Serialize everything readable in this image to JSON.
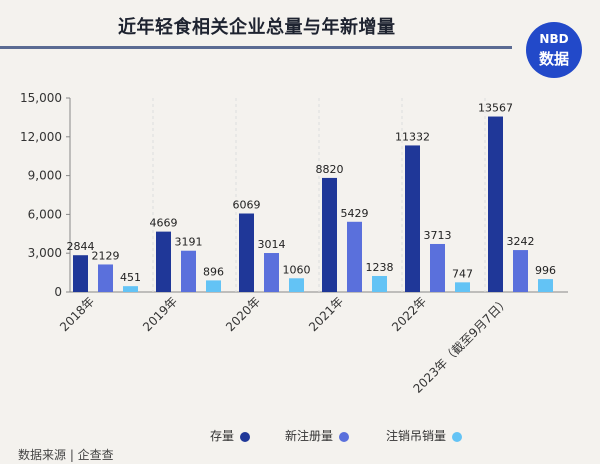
{
  "title": "近年轻食相关企业总量与年新增量",
  "logo": {
    "top": "NBD",
    "bottom": "数据"
  },
  "source": "数据来源 | 企查查",
  "colors": {
    "存量": "#1f3798",
    "新注册量": "#5a70dc",
    "注销吊销量": "#63c3f5"
  },
  "chart_data": {
    "type": "bar",
    "categories": [
      "2018年",
      "2019年",
      "2020年",
      "2021年",
      "2022年",
      "2023年（截至9月7日）"
    ],
    "series": [
      {
        "name": "存量",
        "values": [
          2844,
          4669,
          6069,
          8820,
          11332,
          13567
        ]
      },
      {
        "name": "新注册量",
        "values": [
          2129,
          3191,
          3014,
          5429,
          3713,
          3242
        ]
      },
      {
        "name": "注销吊销量",
        "values": [
          451,
          896,
          1060,
          1238,
          747,
          996
        ]
      }
    ],
    "yticks": [
      "0",
      "3,000",
      "6,000",
      "9,000",
      "12,000",
      "15,000"
    ],
    "ylim": [
      0,
      15000
    ],
    "legend": "bottom"
  }
}
